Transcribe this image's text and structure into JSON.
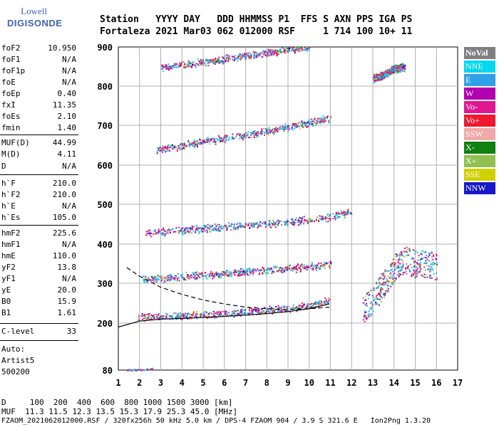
{
  "logo": {
    "line1": "Lowell",
    "line2": "DIGISONDE"
  },
  "header": {
    "line1": "Station   YYYY DAY   DDD HHMMSS P1  FFS S AXN PPS IGA PS",
    "line2": "Fortaleza 2021 Mar03 062 012000 RSF     1 714 100 10+ 11"
  },
  "params": [
    {
      "k": "foF2",
      "v": "10.950"
    },
    {
      "k": "foF1",
      "v": "N/A"
    },
    {
      "k": "foF1p",
      "v": "N/A"
    },
    {
      "k": "foE",
      "v": "N/A"
    },
    {
      "k": "foEp",
      "v": "0.40"
    },
    {
      "k": "fxI",
      "v": "11.35"
    },
    {
      "k": "foEs",
      "v": "2.10"
    },
    {
      "k": "fmin",
      "v": "1.40"
    },
    {
      "k": "MUF(D)",
      "v": "44.99"
    },
    {
      "k": "M(D)",
      "v": "4.11"
    },
    {
      "k": "D",
      "v": "N/A"
    },
    {
      "k": "h`F",
      "v": "210.0"
    },
    {
      "k": "h`F2",
      "v": "210.0"
    },
    {
      "k": "h`E",
      "v": "N/A"
    },
    {
      "k": "h`Es",
      "v": "105.0"
    },
    {
      "k": "hmF2",
      "v": "225.6"
    },
    {
      "k": "hmF1",
      "v": "N/A"
    },
    {
      "k": "hmE",
      "v": "110.0"
    },
    {
      "k": "yF2",
      "v": "13.8"
    },
    {
      "k": "yF1",
      "v": "N/A"
    },
    {
      "k": "yE",
      "v": "20.0"
    },
    {
      "k": "B0",
      "v": "15.9"
    },
    {
      "k": "B1",
      "v": "1.61"
    },
    {
      "k": "C-level",
      "v": "33"
    }
  ],
  "autoscale": {
    "line1": "Auto:",
    "line2": "Artist5",
    "line3": "500200"
  },
  "legend": [
    {
      "label": "NoVal",
      "color": "#808080"
    },
    {
      "label": "NNE",
      "color": "#00d8f0"
    },
    {
      "label": "E",
      "color": "#30a0e8"
    },
    {
      "label": "W",
      "color": "#b000b0"
    },
    {
      "label": "Vo-",
      "color": "#e01890"
    },
    {
      "label": "Vo+",
      "color": "#f01830"
    },
    {
      "label": "SSW",
      "color": "#f0a8a8"
    },
    {
      "label": "X-",
      "color": "#108010"
    },
    {
      "label": "X+",
      "color": "#90c050"
    },
    {
      "label": "SSE",
      "color": "#d0d000"
    },
    {
      "label": "NNW",
      "color": "#1818c8"
    }
  ],
  "footer": {
    "line1": "D     100  200  400  600  800 1000 1500 3000 [km]",
    "line2": "MUF  11.3 11.5 12.3 13.5 15.3 17.9 25.3 45.0 [MHz]",
    "line3": "FZAOM_2021062012000.RSF / 320fx256h 50 kHz 5.0 km / DPS-4 FZAOM 904 / 3.9 S 321.6 E   Ion2Png 1.3.20"
  },
  "chart_data": {
    "type": "scatter",
    "xlim": [
      1,
      17
    ],
    "ylim": [
      80,
      900
    ],
    "x_ticks": [
      1,
      2,
      3,
      4,
      5,
      6,
      7,
      8,
      9,
      10,
      11,
      12,
      13,
      14,
      15,
      16,
      17
    ],
    "y_ticks": [
      80,
      200,
      300,
      400,
      500,
      600,
      700,
      800,
      900
    ],
    "grid": true,
    "legend_placement": "right",
    "traces": [
      {
        "name": "Es",
        "x": [
          1.4,
          1.7,
          2.0,
          2.3,
          2.6
        ],
        "y": [
          82,
          82,
          82,
          83,
          84
        ]
      },
      {
        "name": "F2-1",
        "x": [
          1.9,
          3,
          4,
          5,
          6,
          7,
          8,
          9,
          10,
          11
        ],
        "y": [
          215,
          218,
          220,
          222,
          225,
          230,
          233,
          238,
          245,
          258
        ]
      },
      {
        "name": "F2-2",
        "x": [
          2.1,
          3,
          4,
          5,
          6,
          7,
          8,
          9,
          10,
          11
        ],
        "y": [
          310,
          314,
          318,
          322,
          326,
          330,
          334,
          338,
          343,
          350
        ]
      },
      {
        "name": "F2-3",
        "x": [
          2.2,
          3,
          4,
          5,
          6,
          7,
          8,
          9,
          10,
          11,
          12
        ],
        "y": [
          428,
          432,
          436,
          440,
          444,
          448,
          452,
          456,
          462,
          470,
          480
        ]
      },
      {
        "name": "F2-4",
        "x": [
          2.8,
          4,
          5,
          6,
          7,
          8,
          9,
          10,
          11
        ],
        "y": [
          640,
          650,
          660,
          668,
          676,
          686,
          696,
          708,
          720
        ]
      },
      {
        "name": "F2-5",
        "x": [
          3,
          4,
          5,
          6,
          7,
          8,
          9,
          10
        ],
        "y": [
          848,
          855,
          862,
          870,
          878,
          886,
          894,
          900
        ]
      },
      {
        "name": "spread-F",
        "x": [
          12.5,
          13,
          13.5,
          14,
          14.5,
          15,
          15.5,
          16
        ],
        "y": [
          230,
          260,
          300,
          340,
          360,
          350,
          350,
          345
        ]
      },
      {
        "name": "high",
        "x": [
          13,
          13.5,
          14,
          14.5
        ],
        "y": [
          820,
          830,
          845,
          850
        ]
      }
    ],
    "model_solid": {
      "x": [
        1,
        2,
        3,
        4,
        5,
        6,
        7,
        8,
        9,
        10,
        10.95
      ],
      "y": [
        190,
        205,
        210,
        212,
        214,
        217,
        220,
        224,
        229,
        236,
        248
      ]
    },
    "model_dashed": {
      "x": [
        1.4,
        2,
        3,
        4,
        5,
        6,
        7,
        8,
        9,
        10,
        10.95
      ],
      "y": [
        340,
        318,
        290,
        272,
        258,
        248,
        240,
        236,
        234,
        236,
        240
      ]
    }
  }
}
